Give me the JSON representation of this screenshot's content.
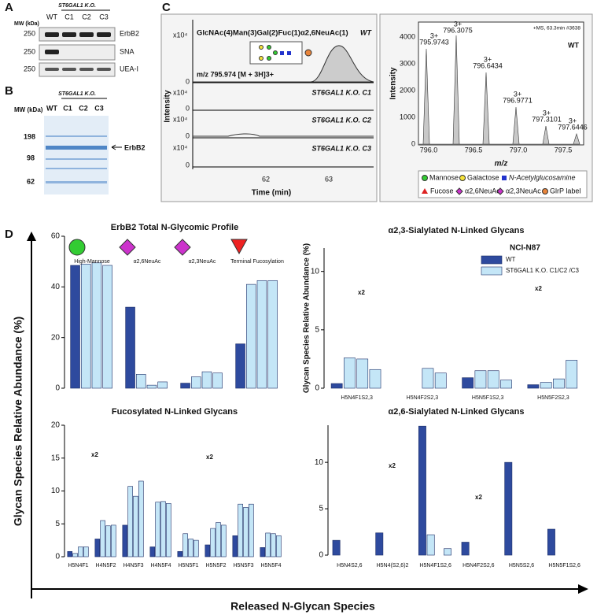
{
  "panel_a": {
    "label": "A",
    "mw_header": "MW (kDa)",
    "group": "ST6GAL1 K.O.",
    "lanes": [
      "WT",
      "C1",
      "C2",
      "C3"
    ],
    "rows": [
      {
        "mw": "250",
        "name": "ErbB2"
      },
      {
        "mw": "250",
        "name": "SNA"
      },
      {
        "mw": "250",
        "name": "UEA-I"
      }
    ]
  },
  "panel_b": {
    "label": "B",
    "mw_header": "MW (kDa)",
    "group": "ST6GAL1 K.O.",
    "lanes": [
      "WT",
      "C1",
      "C2",
      "C3"
    ],
    "markers": [
      "198",
      "98",
      "62"
    ],
    "band": "ErbB2"
  },
  "panel_c": {
    "label": "C",
    "left": {
      "glycan": "GlcNAc(4)Man(3)Gal(2)Fuc(1)α2,6NeuAc(1)",
      "traces": [
        "WT",
        "ST6GAL1 K.O. C1",
        "ST6GAL1 K.O. C2",
        "ST6GAL1 K.O. C3"
      ],
      "mz": "m/z 795.974 [M + 3H]3+",
      "scale": "x10⁴",
      "zero": "0",
      "y_label": "Intensity",
      "x_label": "Time (min)",
      "x_ticks": [
        "62",
        "63"
      ]
    },
    "right": {
      "info": "+MS, 63.3min #3638",
      "sample": "WT",
      "y_label": "Intensity",
      "x_label": "m/z",
      "y_ticks": [
        "0",
        "1000",
        "2000",
        "3000",
        "4000"
      ],
      "x_ticks": [
        "796.0",
        "796.5",
        "797.0",
        "797.5"
      ],
      "peaks": [
        {
          "charge": "3+",
          "mz": "795.9743"
        },
        {
          "charge": "3+",
          "mz": "796.3075"
        },
        {
          "charge": "3+",
          "mz": "796.6434"
        },
        {
          "charge": "3+",
          "mz": "796.9771"
        },
        {
          "charge": "3+",
          "mz": "797.3101"
        },
        {
          "charge": "3+",
          "mz": "797.6446"
        }
      ]
    },
    "legend": [
      "Mannose",
      "Galactose",
      "N-Acetylglucosamine",
      "Fucose",
      "α2,6NeuAc",
      "α2,3NeuAc",
      "GlrP label"
    ]
  },
  "panel_d": {
    "label": "D",
    "y_label": "Glycan Species Relative Abundance (%)",
    "x_label": "Released N-Glycan Species"
  },
  "chart_data": [
    {
      "type": "bar",
      "title": "ErbB2 Total N-Glycomic Profile",
      "categories": [
        "High-Mannose",
        "α2,6NeuAc",
        "α2,3NeuAc",
        "Terminal Fucosylation"
      ],
      "series": [
        {
          "color": "#2e4a9e",
          "values": [
            48.5,
            32,
            2,
            17.5
          ]
        },
        {
          "color": "#c4e6f7",
          "values": [
            [
              49,
              49.5,
              48.5
            ],
            [
              5.5,
              1.2,
              2.5
            ],
            [
              4.5,
              6.5,
              6
            ],
            [
              41,
              42.5,
              42.5
            ]
          ]
        }
      ],
      "ylim": [
        0,
        60
      ],
      "yticks": [
        0,
        20,
        40,
        60
      ]
    },
    {
      "type": "bar",
      "title": "α2,3-Sialylated N-Linked Glycans",
      "y_label": "Glycan Species Relative Abundance (%)",
      "legend_title": "NCI-N87",
      "categories": [
        "H5N4F1S2,3",
        "H5N4F2S2,3",
        "H5N5F1S2,3",
        "H5N5F2S2,3"
      ],
      "series": [
        {
          "name": "WT",
          "color": "#2e4a9e",
          "values": [
            0.4,
            0,
            0.9,
            0.3
          ]
        },
        {
          "name": "ST6GAL1 K.O. C1/C2 /C3",
          "color": "#c4e6f7",
          "values": [
            [
              2.6,
              2.5,
              1.6
            ],
            [
              0,
              1.7,
              1.3
            ],
            [
              1.5,
              1.5,
              0.7
            ],
            [
              0.5,
              0.8,
              2.4
            ]
          ]
        }
      ],
      "annotations": [
        "x2",
        "x2"
      ],
      "ylim": [
        0,
        12
      ],
      "yticks": [
        0,
        5,
        10
      ]
    },
    {
      "type": "bar",
      "title": "Fucosylated N-Linked Glycans",
      "categories": [
        "H5N4F1",
        "H4N5F2",
        "H4N5F3",
        "H4N5F4",
        "H5N5F1",
        "H5N5F2",
        "H5N5F3",
        "H5N5F4"
      ],
      "series": [
        {
          "color": "#2e4a9e",
          "values": [
            0.8,
            2.7,
            4.8,
            1.5,
            0.8,
            1.8,
            3.2,
            1.4
          ]
        },
        {
          "color": "#c4e6f7",
          "values": [
            [
              0.5,
              1.5,
              1.5
            ],
            [
              5.5,
              4.7,
              4.8
            ],
            [
              10.7,
              9.2,
              11.5
            ],
            [
              8.3,
              8.4,
              8.1
            ],
            [
              3.5,
              2.7,
              2.5
            ],
            [
              4.3,
              5.2,
              4.8
            ],
            [
              8,
              7.5,
              8
            ],
            [
              3.6,
              3.5,
              3.2
            ]
          ]
        }
      ],
      "annotations": [
        "x2",
        "x2"
      ],
      "ylim": [
        0,
        20
      ],
      "yticks": [
        0,
        5,
        10,
        15,
        20
      ]
    },
    {
      "type": "bar",
      "title": "α2,6-Sialylated N-Linked Glycans",
      "categories": [
        "H5N4S2,6",
        "H5N4(S2,6)2",
        "H5N4F1S2,6",
        "H5N4F2S2,6",
        "H5N5S2,6",
        "H5N5F1S2,6"
      ],
      "series": [
        {
          "color": "#2e4a9e",
          "values": [
            1.6,
            2.4,
            13.9,
            1.4,
            10,
            2.8
          ]
        },
        {
          "color": "#c4e6f7",
          "values": [
            [
              0,
              0,
              0
            ],
            [
              0,
              0,
              0
            ],
            [
              2.2,
              0,
              0.7
            ],
            [
              0,
              0,
              0
            ],
            [
              0,
              0,
              0
            ],
            [
              0,
              0,
              0
            ]
          ]
        }
      ],
      "annotations": [
        "x2",
        "x2"
      ],
      "ylim": [
        0,
        14
      ],
      "yticks": [
        0,
        5,
        10
      ]
    }
  ]
}
